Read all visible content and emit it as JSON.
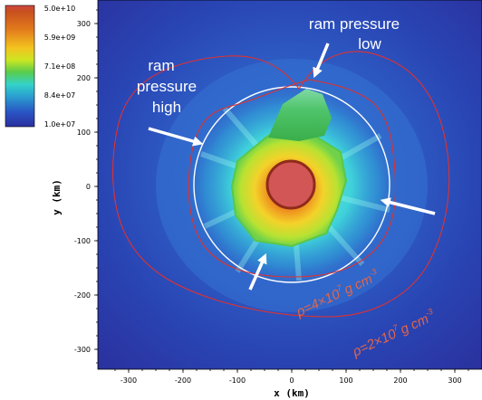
{
  "colorbar": {
    "labels": [
      "5.0e+10",
      "5.9e+09",
      "7.1e+08",
      "8.4e+07",
      "1.0e+07"
    ],
    "stops": [
      "#d04545",
      "#c8501e",
      "#e27b1c",
      "#f3c31f",
      "#cce622",
      "#59cc4c",
      "#34d3c8",
      "#2a9fd0",
      "#2955c4",
      "#2b2f9e"
    ]
  },
  "axes": {
    "xlabel": "x (km)",
    "ylabel": "y (km)",
    "xticks": [
      "-300",
      "-200",
      "-100",
      "0",
      "100",
      "200",
      "300"
    ],
    "yticks": [
      "300",
      "200",
      "100",
      "0",
      "-100",
      "-200",
      "-300"
    ]
  },
  "annotations": {
    "ram_low_1": "ram pressure",
    "ram_low_2": "low",
    "ram_high_1": "ram",
    "ram_high_2": "pressure",
    "ram_high_3": "high"
  },
  "contours": {
    "inner": {
      "rho": "ρ",
      "eq": "=4×10",
      "exp": "7",
      "unit": "g cm",
      "uexp": "-3",
      "color": "#e2664a"
    },
    "outer": {
      "rho": "ρ",
      "eq": "=2×10",
      "exp": "7",
      "unit": "g cm",
      "uexp": "-3",
      "color": "#e2664a"
    }
  }
}
